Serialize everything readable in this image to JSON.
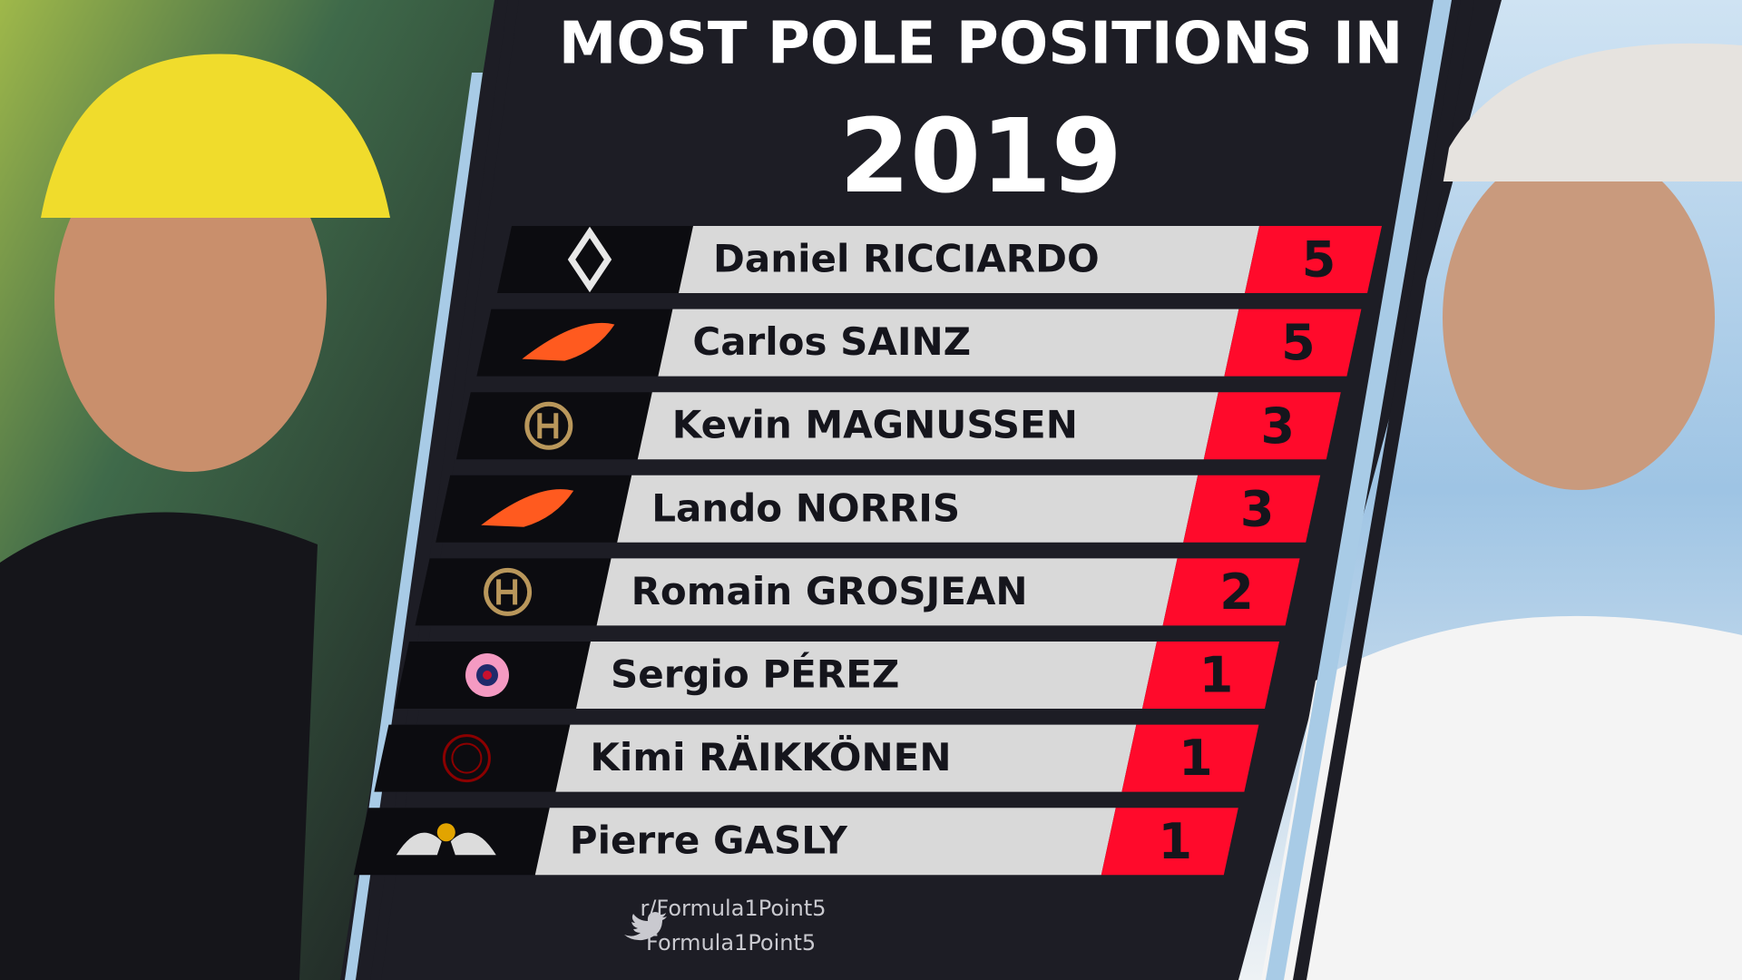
{
  "header": {
    "title": "MOST POLE POSITIONS IN",
    "year": "2019"
  },
  "rows": [
    {
      "driver": "Daniel RICCIARDO",
      "count": "5"
    },
    {
      "driver": "Carlos SAINZ",
      "count": "5"
    },
    {
      "driver": "Kevin MAGNUSSEN",
      "count": "3"
    },
    {
      "driver": "Lando NORRIS",
      "count": "3"
    },
    {
      "driver": "Romain GROSJEAN",
      "count": "2"
    },
    {
      "driver": "Sergio PÉREZ",
      "count": "1"
    },
    {
      "driver": "Kimi RÄIKKÖNEN",
      "count": "1"
    },
    {
      "driver": "Pierre GASLY",
      "count": "1"
    }
  ],
  "footer": {
    "reddit": "r/Formula1Point5",
    "twitter": "Formula1Point5"
  }
}
